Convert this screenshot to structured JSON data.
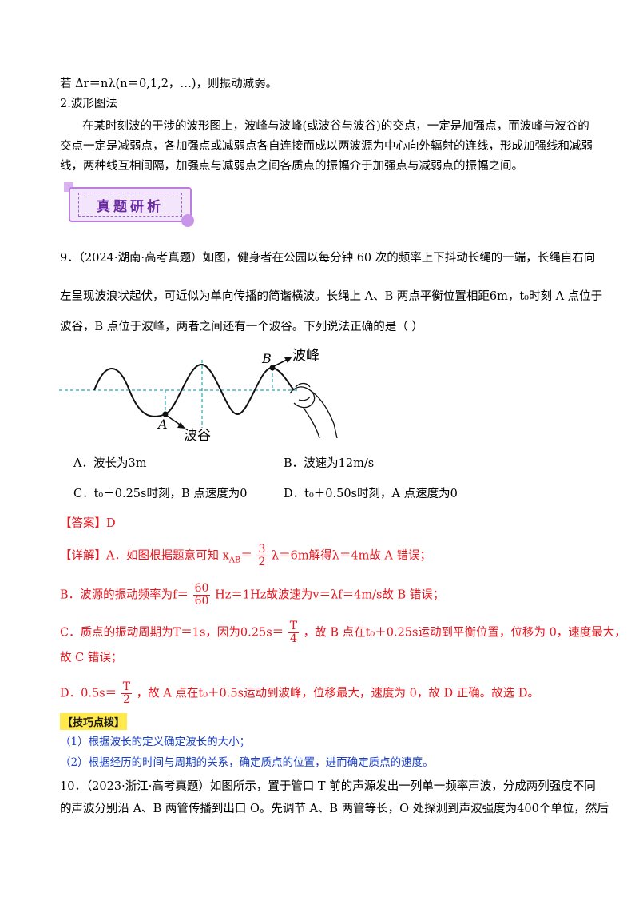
{
  "intro": {
    "line1": "若 Δr＝nλ(n＝0,1,2，…)，则振动减弱。",
    "heading2": "2.波形图法",
    "p1": "在某时刻波的干涉的波形图上，波峰与波峰(或波谷与波谷)的交点，一定是加强点，而波峰与波谷的",
    "p2": "交点一定是减弱点，各加强点或减弱点各自连接而成以两波源为中心向外辐射的连线，形成加强线和减弱",
    "p3": "线，两种线互相间隔，加强点与减弱点之间各质点的振幅介于加强点与减弱点的振幅之间。"
  },
  "badge": {
    "title": "真题研析"
  },
  "q9": {
    "line1": "9．（2024·湖南·高考真题）如图，健身者在公园以每分钟 60 次的频率上下抖动长绳的一端，长绳自右向",
    "line2": "左呈现波浪状起伏，可近似为单向传播的简谐横波。长绳上 A、B 两点平衡位置相距6m，t₀时刻 A 点位于",
    "line3": "波谷，B 点位于波峰，两者之间还有一个波谷。下列说法正确的是（    ）",
    "figure": {
      "label_B": "B",
      "label_crest": "波峰",
      "label_A": "A",
      "label_trough": "波谷"
    },
    "options": {
      "A": "A．波长为3m",
      "B": "B．波速为12m/s",
      "C": "C．t₀＋0.25s时刻，B 点速度为0",
      "D": "D．t₀＋0.50s时刻，A 点速度为0"
    },
    "answer": "【答案】D",
    "detail": {
      "a_pre": "【详解】A．如图根据题意可知 x",
      "a_sub": "AB",
      "a_eq": "＝",
      "a_num": "3",
      "a_den": "2",
      "a_mid": "λ＝6m",
      "a_post": "解得λ＝4m故 A 错误；",
      "b_pre": "B．波源的振动频率为",
      "b_f": "f＝",
      "b_num": "60",
      "b_den": "60",
      "b_post": "Hz＝1Hz故波速为v＝λf＝4m/s故 B 错误；",
      "c_pre": "C．质点的振动周期为T＝1s，因为0.25s＝",
      "c_num": "T",
      "c_den": "4",
      "c_post": "，故 B 点在t₀＋0.25s运动到平衡位置，位移为 0，速度最大，",
      "c_line2": "故 C 错误；",
      "d_pre": "D．0.5s＝",
      "d_num": "T",
      "d_den": "2",
      "d_post": "，故 A 点在t₀＋0.5s运动到波峰，位移最大，速度为 0，故 D 正确。故选 D。"
    },
    "tips": {
      "title": "【技巧点拨】",
      "t1": "（1）根据波长的定义确定波长的大小；",
      "t2": "（2）根据经历的时间与周期的关系，确定质点的位置，进而确定质点的速度。"
    }
  },
  "q10": {
    "line1": "10．（2023·浙江·高考真题）如图所示，置于管口 T 前的声源发出一列单一频率声波，分成两列强度不同",
    "line2": "的声波分别沿 A、B 两管传播到出口 O。先调节 A、B 两管等长，O 处探测到声波强度为400个单位，然后"
  }
}
